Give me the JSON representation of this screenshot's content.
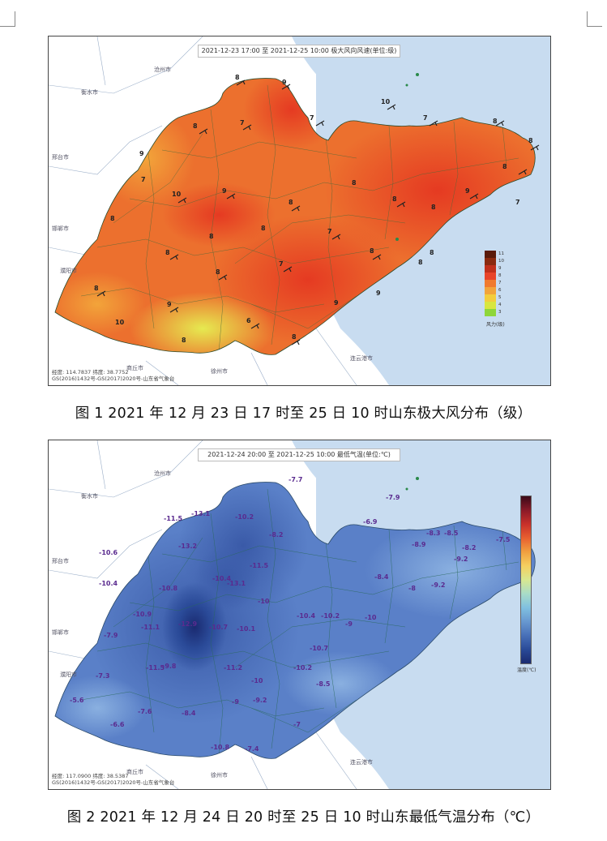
{
  "figure1": {
    "map_title": "2021-12-23 17:00 至 2021-12-25 10:00 极大风向风速(单位:级)",
    "coord_text": "经度: 114.7837  纬度: 38.7752",
    "copyright": "GS(2016)1432号-GS(2017)2020号-山东省气象台",
    "caption": "图 1 2021 年 12 月 23 日 17 时至 25 日 10 时山东极大风分布（级）",
    "legend_levels": [
      "11",
      "10",
      "9",
      "8",
      "7",
      "6",
      "5",
      "4",
      "3"
    ],
    "legend_colors": [
      "#5a1a0a",
      "#8a2a10",
      "#c0301c",
      "#e8442a",
      "#f07a2e",
      "#f2a43a",
      "#f3cd3c",
      "#d8e640",
      "#8ed63a"
    ],
    "legend_unit": "风力(级)",
    "cities": [
      "沧州市",
      "衡水市",
      "邢台市",
      "邯郸市",
      "濮阳市",
      "商丘市",
      "徐州市",
      "连云港市"
    ],
    "values": [
      "8",
      "9",
      "8",
      "7",
      "7",
      "10",
      "7",
      "8",
      "8",
      "9",
      "10",
      "9",
      "8",
      "7",
      "8",
      "8",
      "8",
      "8",
      "8",
      "7",
      "8",
      "8",
      "8",
      "9",
      "6",
      "8",
      "8",
      "9",
      "7",
      "10",
      "8",
      "9",
      "8",
      "9",
      "7",
      "8",
      "8",
      "8"
    ]
  },
  "figure2": {
    "map_title": "2021-12-24 20:00 至 2021-12-25 10:00 最低气温(单位:℃)",
    "coord_text": "经度: 117.0900  纬度: 38.5387",
    "copyright": "GS(2016)1432号-GS(2017)2020号-山东省气象台",
    "caption": "图 2 2021 年 12 月 24 日 20 时至 25 日 10 时山东最低气温分布（℃）",
    "legend_unit": "温度(℃)",
    "legend_colors": [
      "#3a0a18",
      "#8a1a28",
      "#c8302a",
      "#e86030",
      "#f0a040",
      "#f5d060",
      "#d8e890",
      "#a8dcc8",
      "#80c0e0",
      "#6898d0",
      "#4870b8",
      "#2a4a98",
      "#1a2a70"
    ],
    "cities": [
      "沧州市",
      "衡水市",
      "邢台市",
      "邯郸市",
      "濮阳市",
      "商丘市",
      "徐州市",
      "连云港市"
    ],
    "values": [
      "-7.7",
      "-7.9",
      "-11.5",
      "-13.1",
      "-10.2",
      "-6.9",
      "-8.2",
      "-8.3",
      "-8.5",
      "-7.5",
      "-13.2",
      "-8.2",
      "-8.9",
      "-9.2",
      "-10.6",
      "-11.5",
      "-10.4",
      "-10.8",
      "-10.4",
      "-13.1",
      "-8.4",
      "-8",
      "-9.2",
      "-10",
      "-10.9",
      "-11.1",
      "-12.9",
      "-10.7",
      "-10.1",
      "-10.4",
      "-10.2",
      "-9",
      "-10",
      "-7.9",
      "-10.7",
      "-11.5",
      "-9.8",
      "-11.2",
      "-7.3",
      "-10",
      "-10.2",
      "-8.5",
      "-5.6",
      "-9",
      "-9.2",
      "-7.6",
      "-8.4",
      "-6.6",
      "-7",
      "-10.8",
      "-7.4"
    ]
  }
}
